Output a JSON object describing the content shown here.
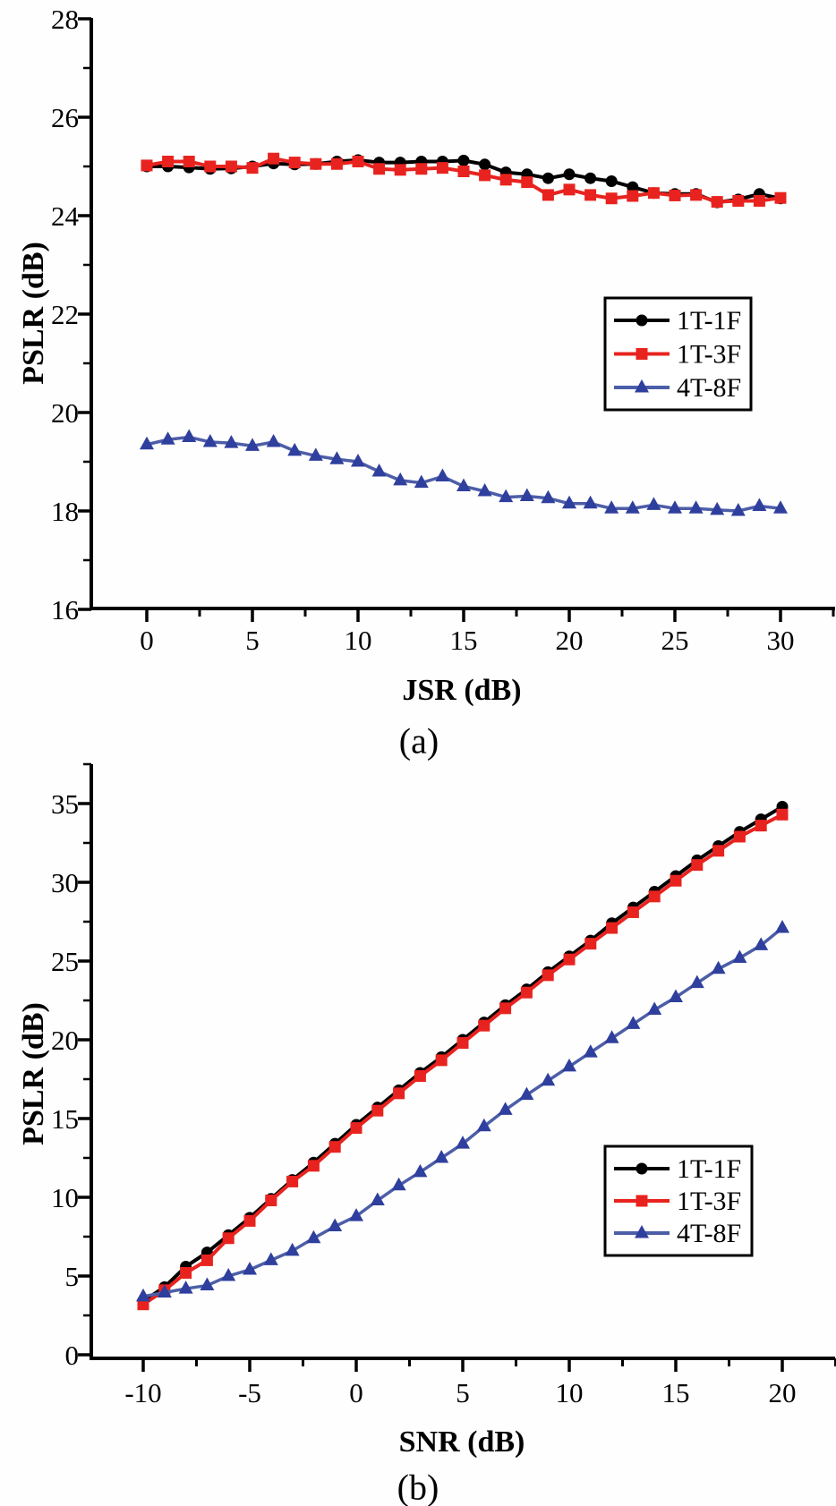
{
  "figure": {
    "background": "#fefefe",
    "axis_color": "#000000",
    "caption_a": "(a)",
    "caption_b": "(b)"
  },
  "chart_data": [
    {
      "id": "a",
      "type": "line",
      "title": "",
      "xlabel": "JSR (dB)",
      "ylabel": "PSLR (dB)",
      "caption": "(a)",
      "xlim": [
        0,
        30
      ],
      "ylim": [
        16,
        28
      ],
      "xticks": [
        0,
        5,
        10,
        15,
        20,
        25,
        30
      ],
      "yticks": [
        16,
        18,
        20,
        22,
        24,
        26,
        28
      ],
      "x_minor_step": 2.5,
      "y_minor_step": 1,
      "grid": false,
      "legend_position": "right-center",
      "x_start": 0,
      "x_step": 1,
      "series": [
        {
          "name": "1T-1F",
          "marker": "circle",
          "color": "#000000",
          "line_color": "#000000",
          "line_width": 4,
          "values": [
            25.0,
            25.0,
            24.98,
            24.95,
            24.96,
            25.0,
            25.06,
            25.04,
            25.05,
            25.1,
            25.13,
            25.08,
            25.08,
            25.1,
            25.1,
            25.12,
            25.04,
            24.88,
            24.84,
            24.76,
            24.84,
            24.76,
            24.7,
            24.58,
            24.46,
            24.44,
            24.44,
            24.27,
            24.33,
            24.44,
            24.35
          ]
        },
        {
          "name": "1T-3F",
          "marker": "square",
          "color": "#e8231f",
          "line_color": "#e8231f",
          "line_width": 4,
          "values": [
            25.02,
            25.1,
            25.1,
            25.0,
            25.0,
            24.97,
            25.16,
            25.08,
            25.05,
            25.05,
            25.1,
            24.95,
            24.93,
            24.95,
            24.97,
            24.9,
            24.82,
            24.73,
            24.68,
            24.42,
            24.53,
            24.42,
            24.35,
            24.4,
            24.46,
            24.41,
            24.42,
            24.28,
            24.3,
            24.3,
            24.36
          ]
        },
        {
          "name": "4T-8F",
          "marker": "triangle",
          "color": "#2f3f9d",
          "line_color": "#4d5ea8",
          "line_width": 3.5,
          "values": [
            19.35,
            19.45,
            19.5,
            19.4,
            19.38,
            19.32,
            19.4,
            19.22,
            19.12,
            19.05,
            19.0,
            18.8,
            18.62,
            18.57,
            18.7,
            18.5,
            18.4,
            18.28,
            18.3,
            18.26,
            18.15,
            18.15,
            18.05,
            18.05,
            18.12,
            18.05,
            18.05,
            18.02,
            18.0,
            18.1,
            18.05
          ]
        }
      ]
    },
    {
      "id": "b",
      "type": "line",
      "title": "",
      "xlabel": "SNR (dB)",
      "ylabel": "PSLR (dB)",
      "caption": "(b)",
      "xlim": [
        -10,
        20
      ],
      "ylim": [
        0,
        35
      ],
      "xticks": [
        -10,
        -5,
        0,
        5,
        10,
        15,
        20
      ],
      "yticks": [
        0,
        5,
        10,
        15,
        20,
        25,
        30,
        35
      ],
      "x_minor_step": 2.5,
      "y_minor_step": 2.5,
      "grid": false,
      "legend_position": "right-center",
      "x_start": -10,
      "x_step": 1,
      "series": [
        {
          "name": "1T-1F",
          "marker": "circle",
          "color": "#000000",
          "line_color": "#000000",
          "line_width": 4,
          "values": [
            3.4,
            4.3,
            5.6,
            6.5,
            7.6,
            8.7,
            9.9,
            11.1,
            12.2,
            13.4,
            14.6,
            15.7,
            16.8,
            17.9,
            18.9,
            20.0,
            21.1,
            22.2,
            23.2,
            24.3,
            25.3,
            26.3,
            27.4,
            28.4,
            29.4,
            30.4,
            31.4,
            32.3,
            33.2,
            34.0,
            34.8
          ]
        },
        {
          "name": "1T-3F",
          "marker": "square",
          "color": "#e8231f",
          "line_color": "#e8231f",
          "line_width": 4,
          "values": [
            3.2,
            4.1,
            5.2,
            6.0,
            7.4,
            8.5,
            9.8,
            11.0,
            12.0,
            13.2,
            14.4,
            15.5,
            16.6,
            17.7,
            18.7,
            19.8,
            20.9,
            22.0,
            23.0,
            24.1,
            25.1,
            26.1,
            27.1,
            28.1,
            29.1,
            30.1,
            31.1,
            32.0,
            32.9,
            33.6,
            34.3
          ]
        },
        {
          "name": "4T-8F",
          "marker": "triangle",
          "color": "#2f3f9d",
          "line_color": "#4d5ea8",
          "line_width": 3.5,
          "values": [
            3.7,
            3.95,
            4.2,
            4.4,
            5.0,
            5.4,
            6.0,
            6.6,
            7.4,
            8.15,
            8.8,
            9.8,
            10.75,
            11.6,
            12.5,
            13.4,
            14.5,
            15.55,
            16.5,
            17.4,
            18.3,
            19.2,
            20.1,
            21.0,
            21.9,
            22.7,
            23.6,
            24.5,
            25.2,
            26.0,
            27.1
          ]
        }
      ]
    }
  ]
}
